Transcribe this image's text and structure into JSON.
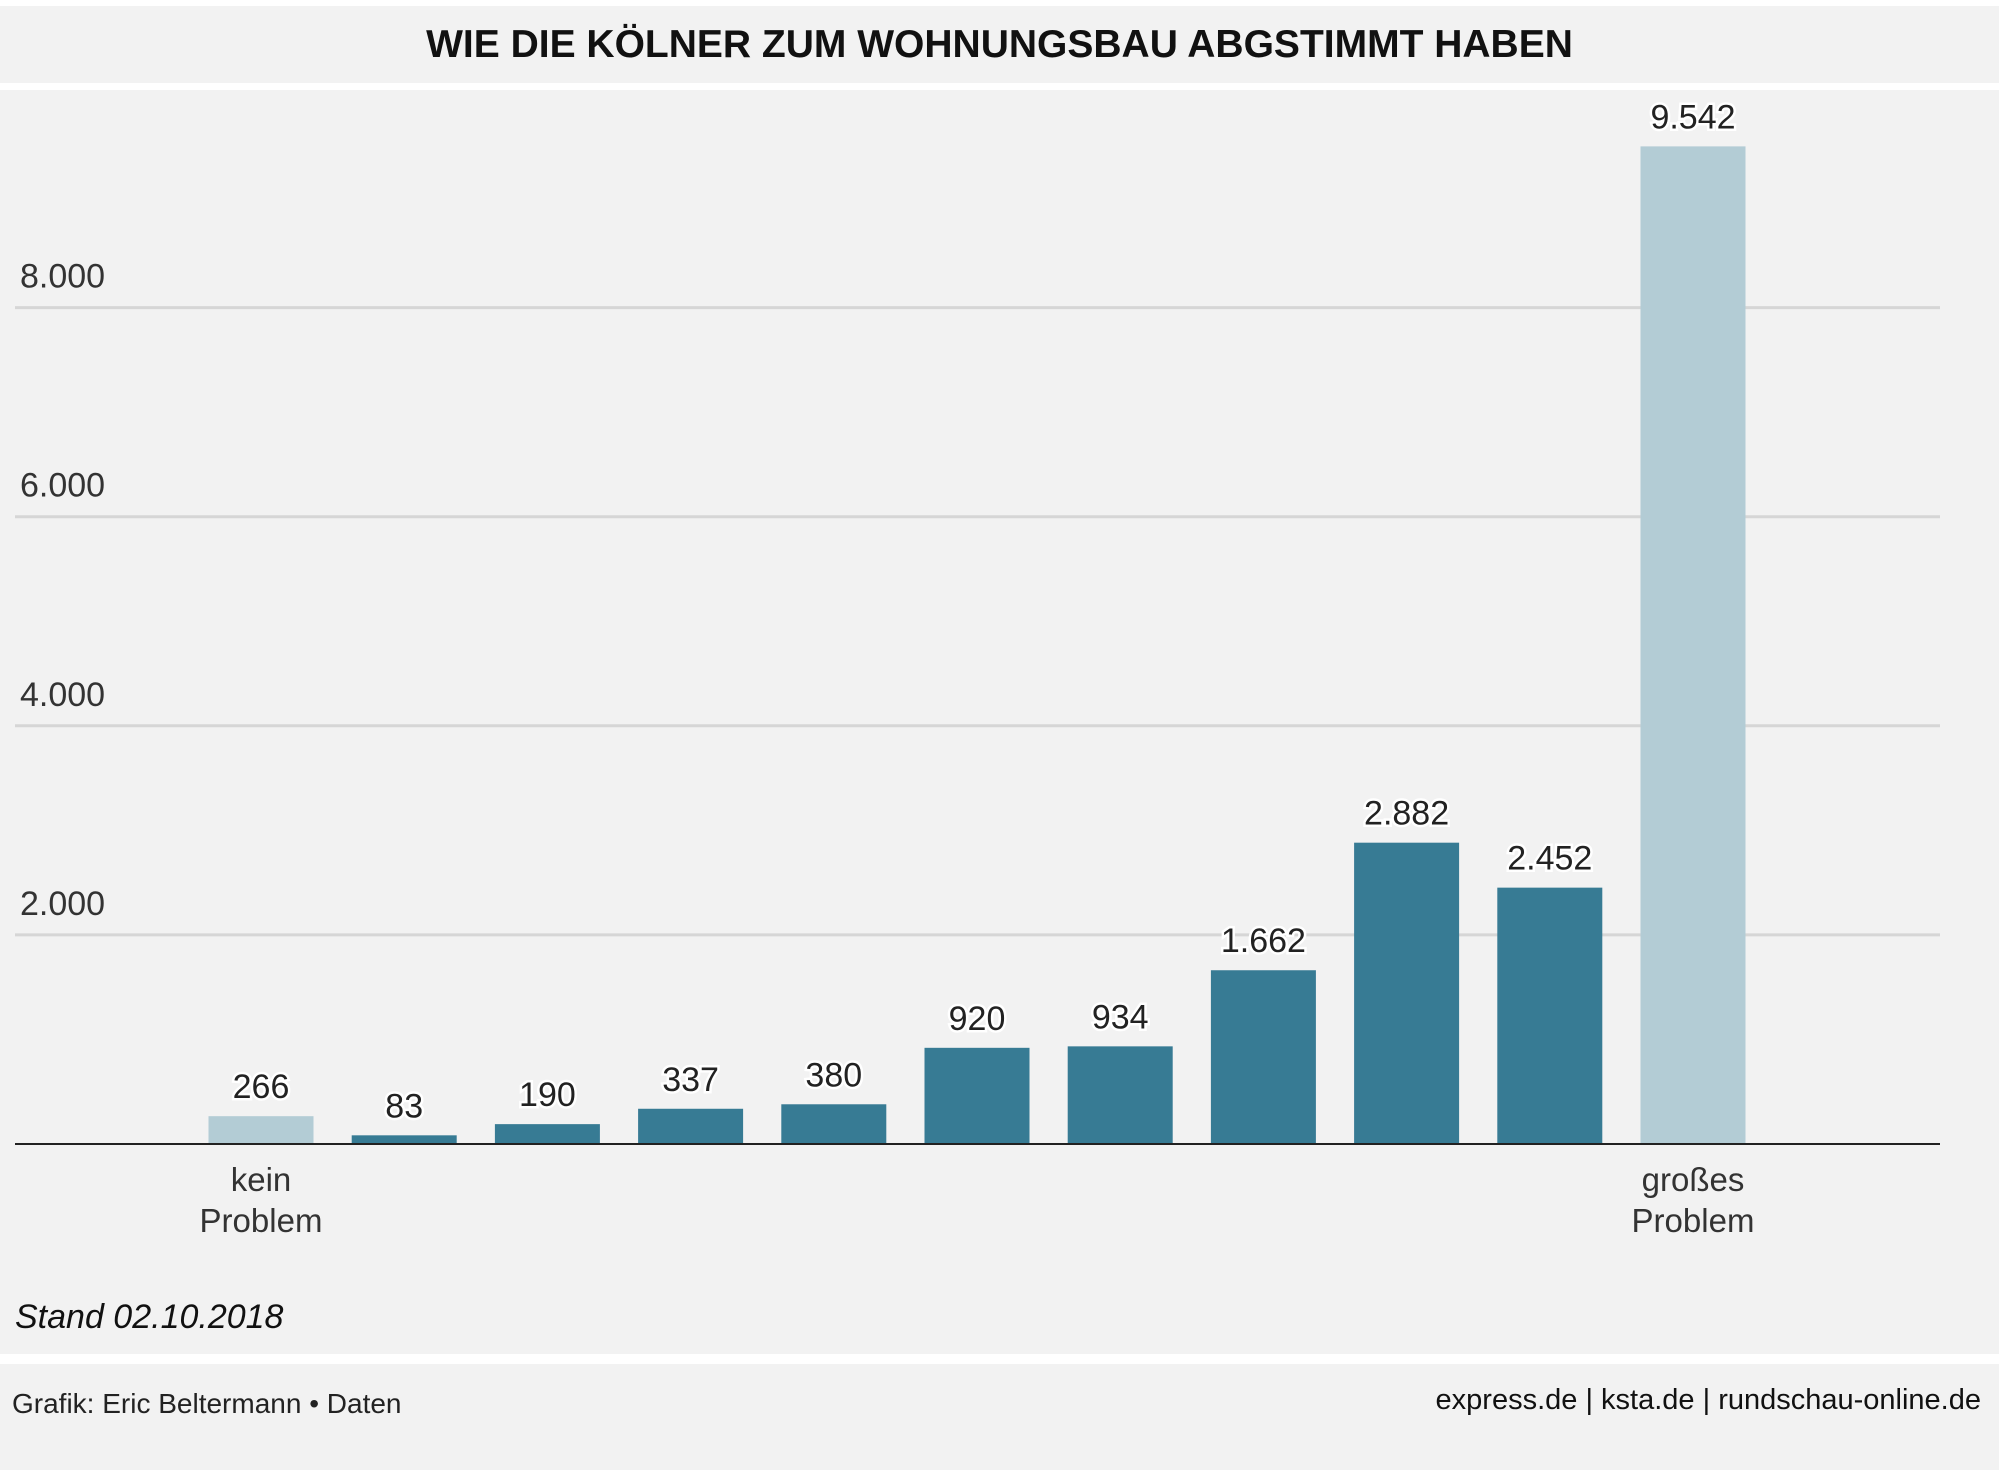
{
  "title": "WIE DIE KÖLNER ZUM WOHNUNGSBAU ABGSTIMMT HABEN",
  "note": "Stand 02.10.2018",
  "footer": {
    "credit": "Grafik: Eric Beltermann • Daten",
    "sources": "express.de | ksta.de | rundschau-online.de"
  },
  "chart_data": {
    "type": "bar",
    "title": "WIE DIE KÖLNER ZUM WOHNUNGSBAU ABGSTIMMT HABEN",
    "categories": [
      "kein Problem",
      "",
      "",
      "",
      "",
      "",
      "",
      "",
      "",
      "",
      "großes Problem"
    ],
    "values": [
      266,
      83,
      190,
      337,
      380,
      920,
      934,
      1662,
      2882,
      2452,
      9542
    ],
    "value_labels": [
      "266",
      "83",
      "190",
      "337",
      "380",
      "920",
      "934",
      "1.662",
      "2.882",
      "2.452",
      "9.542"
    ],
    "bar_colors": [
      "#b3ccd5",
      "#377b94",
      "#377b94",
      "#377b94",
      "#377b94",
      "#377b94",
      "#377b94",
      "#377b94",
      "#377b94",
      "#377b94",
      "#b3ccd5"
    ],
    "yticks": [
      2000,
      4000,
      6000,
      8000
    ],
    "ytick_labels": [
      "2.000",
      "4.000",
      "6.000",
      "8.000"
    ],
    "ylim": [
      0,
      10000
    ],
    "grid": true,
    "xlabel": "",
    "ylabel": ""
  },
  "colors": {
    "background": "#f2f2f2",
    "bar_dark": "#377b94",
    "bar_light": "#b3ccd5"
  }
}
